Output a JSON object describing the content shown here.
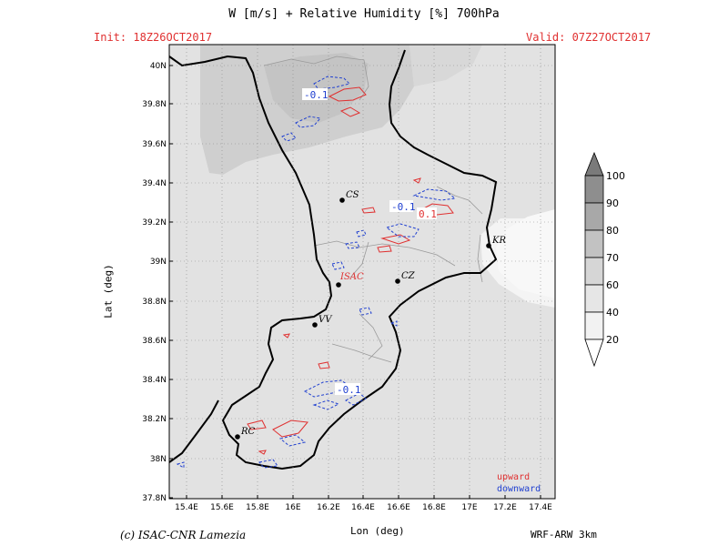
{
  "title": "W [m/s] + Relative Humidity [%] 700hPa",
  "init": "Init: 18Z26OCT2017",
  "valid": "Valid: 07Z27OCT2017",
  "credit": "(c) ISAC-CNR Lamezia",
  "model": "WRF-ARW 3km",
  "axes": {
    "xlabel": "Lon (deg)",
    "ylabel": "Lat (deg)",
    "lon_ticks": [
      "15.4E",
      "15.6E",
      "15.8E",
      "16E",
      "16.2E",
      "16.4E",
      "16.6E",
      "16.8E",
      "17E",
      "17.2E",
      "17.4E"
    ],
    "lat_ticks": [
      "40N",
      "39.8N",
      "39.6N",
      "39.4N",
      "39.2N",
      "39N",
      "38.8N",
      "38.6N",
      "38.4N",
      "38.2N",
      "38N",
      "37.8N"
    ]
  },
  "cities": [
    {
      "name": "CS",
      "color": "#000000"
    },
    {
      "name": "KR",
      "color": "#000000"
    },
    {
      "name": "ISAC",
      "color": "#e03030"
    },
    {
      "name": "CZ",
      "color": "#000000"
    },
    {
      "name": "VV",
      "color": "#000000"
    },
    {
      "name": "RC",
      "color": "#000000"
    }
  ],
  "contour_labels": [
    "-0.1",
    "-0.1",
    "0.1",
    "-0.1"
  ],
  "legend": {
    "upward": "upward",
    "downward": "downward",
    "upward_color": "#e03030",
    "downward_color": "#2040d0"
  },
  "colorbar": {
    "levels": [
      "100",
      "90",
      "80",
      "70",
      "60",
      "40",
      "20"
    ]
  }
}
